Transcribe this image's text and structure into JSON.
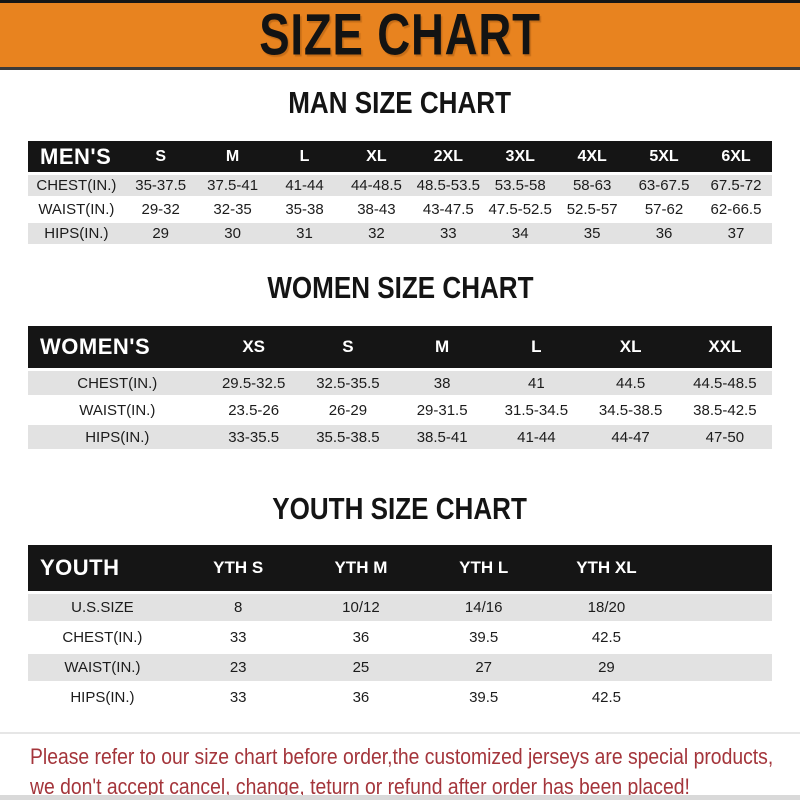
{
  "banner": {
    "title": "SIZE CHART"
  },
  "colors": {
    "banner_orange": "#E8831F",
    "header_bar_black": "#151515",
    "row_gray": "#E2E2E2",
    "notice_red": "#A4353B"
  },
  "sections": [
    {
      "title": "MAN SIZE CHART",
      "table": {
        "header_label": "MEN'S",
        "columns": [
          "S",
          "M",
          "L",
          "XL",
          "2XL",
          "3XL",
          "4XL",
          "5XL",
          "6XL"
        ],
        "rows": [
          {
            "label": "CHEST(IN.)",
            "values": [
              "35-37.5",
              "37.5-41",
              "41-44",
              "44-48.5",
              "48.5-53.5",
              "53.5-58",
              "58-63",
              "63-67.5",
              "67.5-72"
            ]
          },
          {
            "label": "WAIST(IN.)",
            "values": [
              "29-32",
              "32-35",
              "35-38",
              "38-43",
              "43-47.5",
              "47.5-52.5",
              "52.5-57",
              "57-62",
              "62-66.5"
            ]
          },
          {
            "label": "HIPS(IN.)",
            "values": [
              "29",
              "30",
              "31",
              "32",
              "33",
              "34",
              "35",
              "36",
              "37"
            ]
          }
        ]
      }
    },
    {
      "title": "WOMEN SIZE CHART",
      "table": {
        "header_label": "WOMEN'S",
        "columns": [
          "XS",
          "S",
          "M",
          "L",
          "XL",
          "XXL"
        ],
        "rows": [
          {
            "label": "CHEST(IN.)",
            "values": [
              "29.5-32.5",
              "32.5-35.5",
              "38",
              "41",
              "44.5",
              "44.5-48.5"
            ]
          },
          {
            "label": "WAIST(IN.)",
            "values": [
              "23.5-26",
              "26-29",
              "29-31.5",
              "31.5-34.5",
              "34.5-38.5",
              "38.5-42.5"
            ]
          },
          {
            "label": "HIPS(IN.)",
            "values": [
              "33-35.5",
              "35.5-38.5",
              "38.5-41",
              "41-44",
              "44-47",
              "47-50"
            ]
          }
        ]
      }
    },
    {
      "title": "YOUTH SIZE CHART",
      "table": {
        "header_label": "YOUTH",
        "columns": [
          "YTH S",
          "YTH M",
          "YTH L",
          "YTH XL"
        ],
        "rows": [
          {
            "label": "U.S.SIZE",
            "values": [
              "8",
              "10/12",
              "14/16",
              "18/20"
            ]
          },
          {
            "label": "CHEST(IN.)",
            "values": [
              "33",
              "36",
              "39.5",
              "42.5"
            ]
          },
          {
            "label": "WAIST(IN.)",
            "values": [
              "23",
              "25",
              "27",
              "29"
            ]
          },
          {
            "label": "HIPS(IN.)",
            "values": [
              "33",
              "36",
              "39.5",
              "42.5"
            ]
          }
        ]
      }
    }
  ],
  "footer": {
    "lines": [
      "Please refer to our size chart before order,the customized jerseys are special products,",
      "we don't accept cancel, change, teturn or refund after order has been placed!"
    ]
  }
}
